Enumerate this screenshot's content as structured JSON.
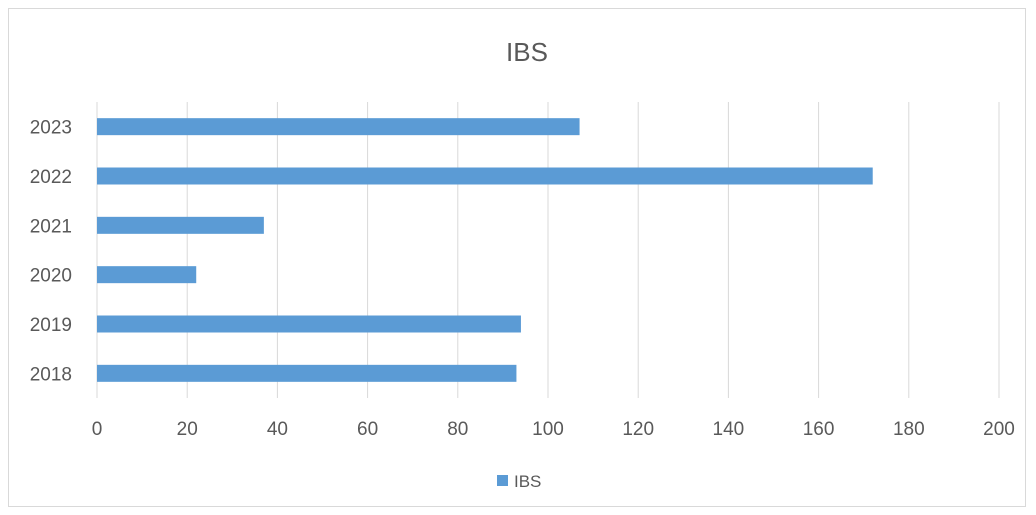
{
  "chart_data": {
    "type": "bar",
    "orientation": "horizontal",
    "title": "IBS",
    "categories": [
      "2018",
      "2019",
      "2020",
      "2021",
      "2022",
      "2023"
    ],
    "series": [
      {
        "name": "IBS",
        "values": [
          93,
          94,
          22,
          37,
          172,
          107
        ],
        "color": "#5b9bd5"
      }
    ],
    "xlim": [
      0,
      200
    ],
    "x_ticks": [
      0,
      20,
      40,
      60,
      80,
      100,
      120,
      140,
      160,
      180,
      200
    ],
    "grid": "vertical",
    "legend": "bottom"
  }
}
